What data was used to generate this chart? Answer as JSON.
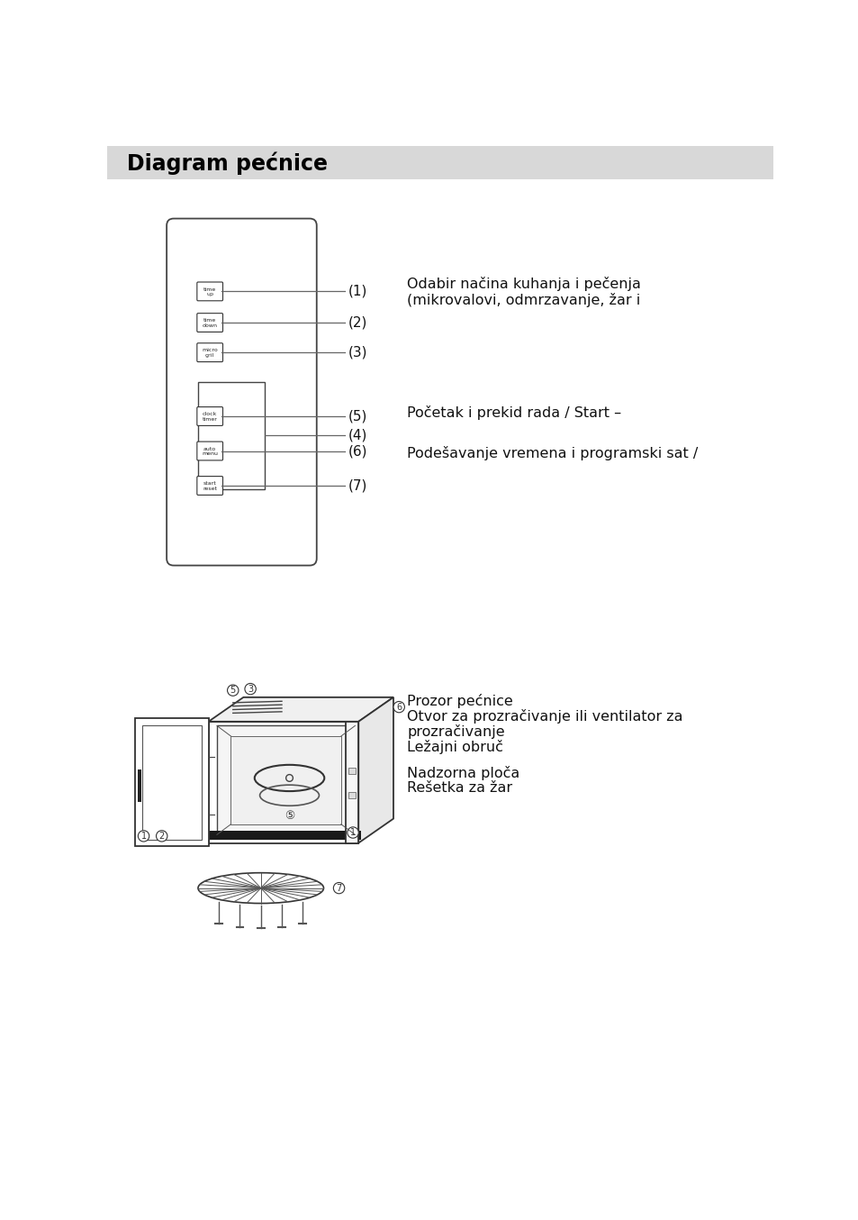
{
  "title": "Diagram pećnice",
  "title_bg": "#d8d8d8",
  "bg_color": "#ffffff",
  "text_color": "#000000",
  "panel_btn1": [
    "time",
    "up"
  ],
  "panel_btn2": [
    "time",
    "down"
  ],
  "panel_btn3": [
    "micro",
    "gril"
  ],
  "panel_btn5": [
    "clock",
    "timer"
  ],
  "panel_btn6": [
    "auto",
    "menu"
  ],
  "panel_btn7": [
    "start",
    "reset"
  ],
  "label1": "(1)",
  "label2": "(2)",
  "label3": "(3)",
  "label4": "(4)",
  "label5": "(5)",
  "label6": "(6)",
  "label7": "(7)",
  "text1": "Odabir načina kuhanja i pečenja",
  "text1b": "(mikrovalovi, odmrzavanje, žar i",
  "text4": "Podešavanje vremena i programski sat /",
  "text5": "Početak i prekid rada / Start –",
  "bt1": "Prozor pećnice",
  "bt2": "Otvor za prozračivanje ili ventilator za",
  "bt3": "prozračivanje",
  "bt4": "Ležajni obruč",
  "bt5": "Nadzorna ploča",
  "bt6": "Rešetka za žar"
}
